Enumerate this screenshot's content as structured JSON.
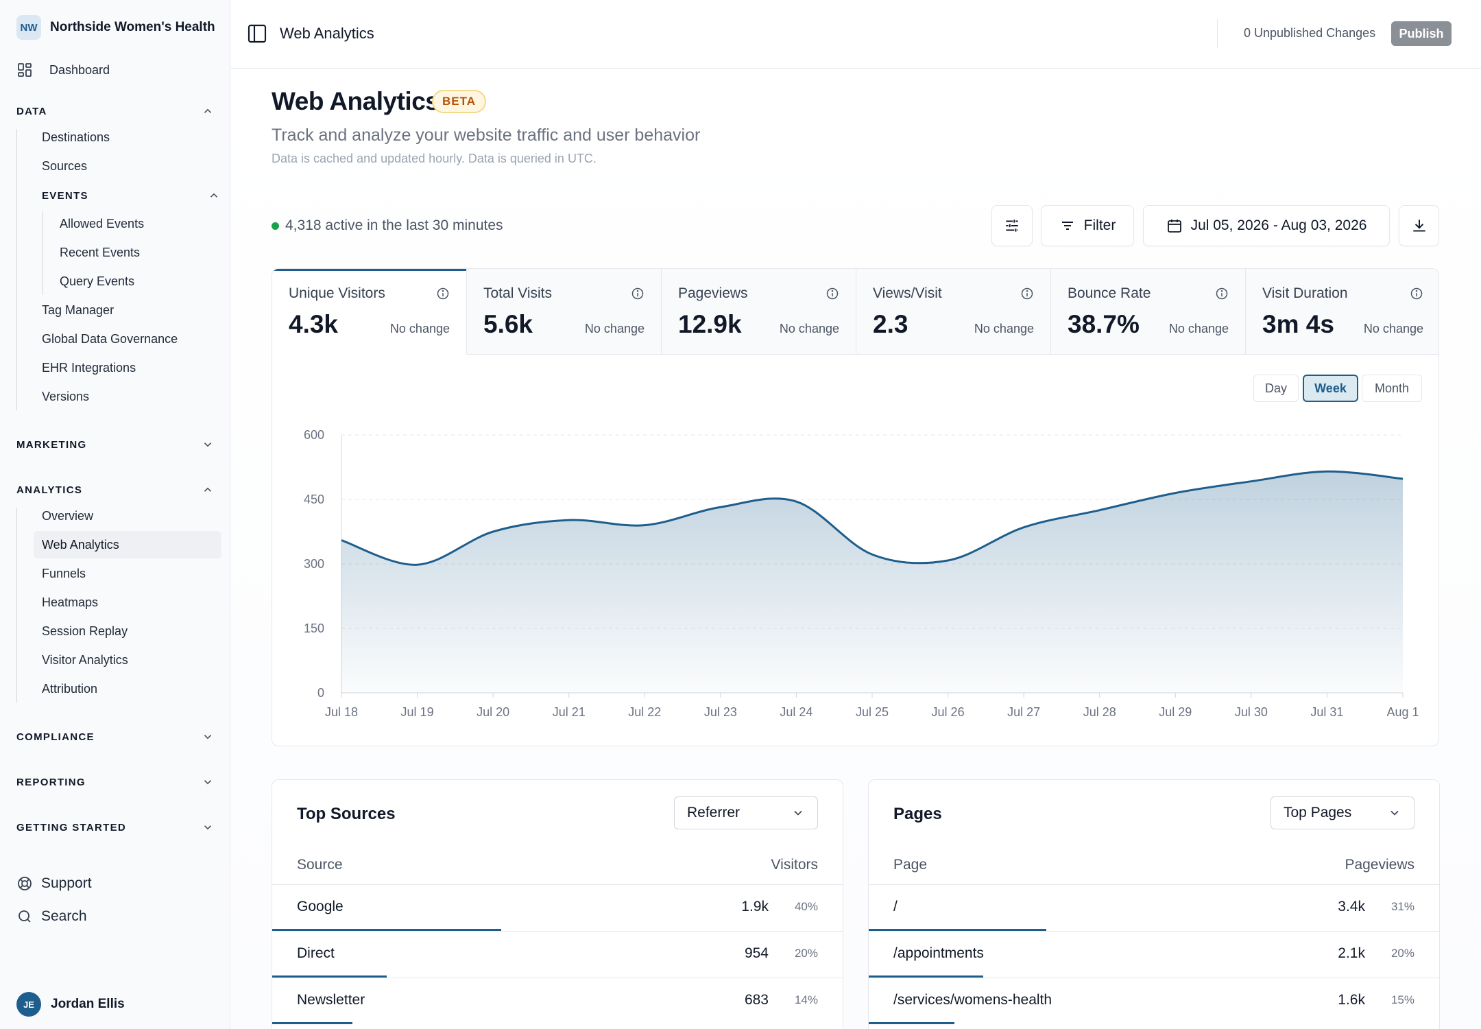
{
  "sidebar": {
    "org_initials": "NW",
    "org_name": "Northside Women's Health",
    "dashboard": "Dashboard",
    "data": {
      "label": "DATA",
      "items": [
        "Destinations",
        "Sources"
      ],
      "events": {
        "label": "EVENTS",
        "items": [
          "Allowed Events",
          "Recent Events",
          "Query Events"
        ]
      },
      "items_after": [
        "Tag Manager",
        "Global Data Governance",
        "EHR Integrations",
        "Versions"
      ]
    },
    "marketing": "MARKETING",
    "analytics": {
      "label": "ANALYTICS",
      "items": [
        "Overview",
        "Web Analytics",
        "Funnels",
        "Heatmaps",
        "Session Replay",
        "Visitor Analytics",
        "Attribution"
      ]
    },
    "compliance": "COMPLIANCE",
    "reporting": "REPORTING",
    "getting_started": "GETTING STARTED",
    "support": "Support",
    "search": "Search",
    "user_initials": "JE",
    "user_name": "Jordan Ellis"
  },
  "topbar": {
    "title": "Web Analytics",
    "unpublished": "0 Unpublished Changes",
    "publish": "Publish"
  },
  "header": {
    "title": "Web Analytics",
    "badge": "BETA",
    "subtitle": "Track and analyze your website traffic and user behavior",
    "note": "Data is cached and updated hourly. Data is queried in UTC."
  },
  "toolbar": {
    "active_text": "4,318 active in the last 30 minutes",
    "filter": "Filter",
    "date_range": "Jul 05, 2026 - Aug 03, 2026"
  },
  "metrics": [
    {
      "label": "Unique Visitors",
      "value": "4.3k",
      "change": "No change"
    },
    {
      "label": "Total Visits",
      "value": "5.6k",
      "change": "No change"
    },
    {
      "label": "Pageviews",
      "value": "12.9k",
      "change": "No change"
    },
    {
      "label": "Views/Visit",
      "value": "2.3",
      "change": "No change"
    },
    {
      "label": "Bounce Rate",
      "value": "38.7%",
      "change": "No change"
    },
    {
      "label": "Visit Duration",
      "value": "3m 4s",
      "change": "No change"
    }
  ],
  "range": {
    "day": "Day",
    "week": "Week",
    "month": "Month",
    "selected": "Week"
  },
  "colors": {
    "accent": "#1e5e8c",
    "active_dot": "#16a34a",
    "beta_text": "#b45309"
  },
  "chart_data": {
    "type": "area",
    "x": [
      "Jul 18",
      "Jul 19",
      "Jul 20",
      "Jul 21",
      "Jul 22",
      "Jul 23",
      "Jul 24",
      "Jul 25",
      "Jul 26",
      "Jul 27",
      "Jul 28",
      "Jul 29",
      "Jul 30",
      "Jul 31",
      "Aug 1"
    ],
    "series": [
      {
        "values": [
          355,
          298,
          375,
          402,
          390,
          432,
          445,
          322,
          308,
          385,
          425,
          465,
          492,
          515,
          498
        ]
      }
    ],
    "ylim": [
      0,
      600
    ],
    "yticks": [
      "0",
      "150",
      "300",
      "450",
      "600"
    ],
    "grid": true
  },
  "sources": {
    "title": "Top Sources",
    "select": "Referrer",
    "col_name": "Source",
    "col_value": "Visitors",
    "rows": [
      {
        "name": "Google",
        "value": "1.9k",
        "pct": "40%",
        "share": 0.4
      },
      {
        "name": "Direct",
        "value": "954",
        "pct": "20%",
        "share": 0.2
      },
      {
        "name": "Newsletter",
        "value": "683",
        "pct": "14%",
        "share": 0.14
      }
    ]
  },
  "pages": {
    "title": "Pages",
    "select": "Top Pages",
    "col_name": "Page",
    "col_value": "Pageviews",
    "rows": [
      {
        "name": "/",
        "value": "3.4k",
        "pct": "31%",
        "share": 0.31
      },
      {
        "name": "/appointments",
        "value": "2.1k",
        "pct": "20%",
        "share": 0.2
      },
      {
        "name": "/services/womens-health",
        "value": "1.6k",
        "pct": "15%",
        "share": 0.15
      }
    ]
  }
}
